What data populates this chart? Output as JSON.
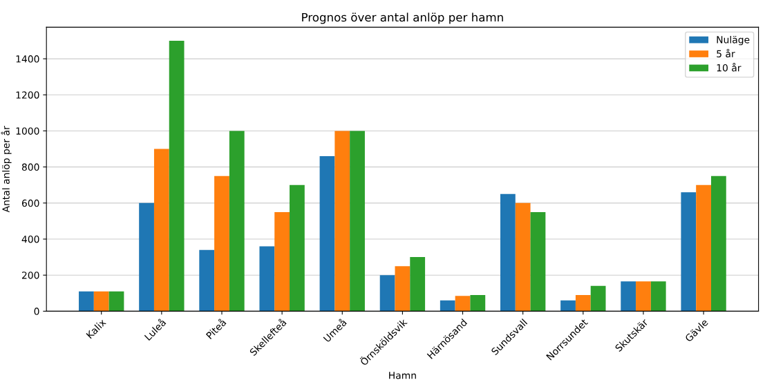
{
  "chart_data": {
    "type": "bar",
    "title": "Prognos över antal anlöp per hamn",
    "xlabel": "Hamn",
    "ylabel": "Antal anlöp per år",
    "categories": [
      "Kalix",
      "Luleå",
      "Piteå",
      "Skellefteå",
      "Umeå",
      "Örnsköldsvik",
      "Härnösand",
      "Sundsvall",
      "Norrsundet",
      "Skutskär",
      "Gävle"
    ],
    "series": [
      {
        "name": "Nuläge",
        "color": "#1f77b4",
        "values": [
          110,
          600,
          340,
          360,
          860,
          200,
          60,
          650,
          60,
          165,
          660
        ]
      },
      {
        "name": "5 år",
        "color": "#ff7f0e",
        "values": [
          110,
          900,
          750,
          550,
          1000,
          250,
          85,
          600,
          90,
          165,
          700
        ]
      },
      {
        "name": "10 år",
        "color": "#2ca02c",
        "values": [
          110,
          1500,
          1000,
          700,
          1000,
          300,
          90,
          550,
          140,
          165,
          750
        ]
      }
    ],
    "ylim": [
      0,
      1575
    ],
    "yticks": [
      0,
      200,
      400,
      600,
      800,
      1000,
      1200,
      1400
    ],
    "grid": "y",
    "legend": "top right"
  }
}
